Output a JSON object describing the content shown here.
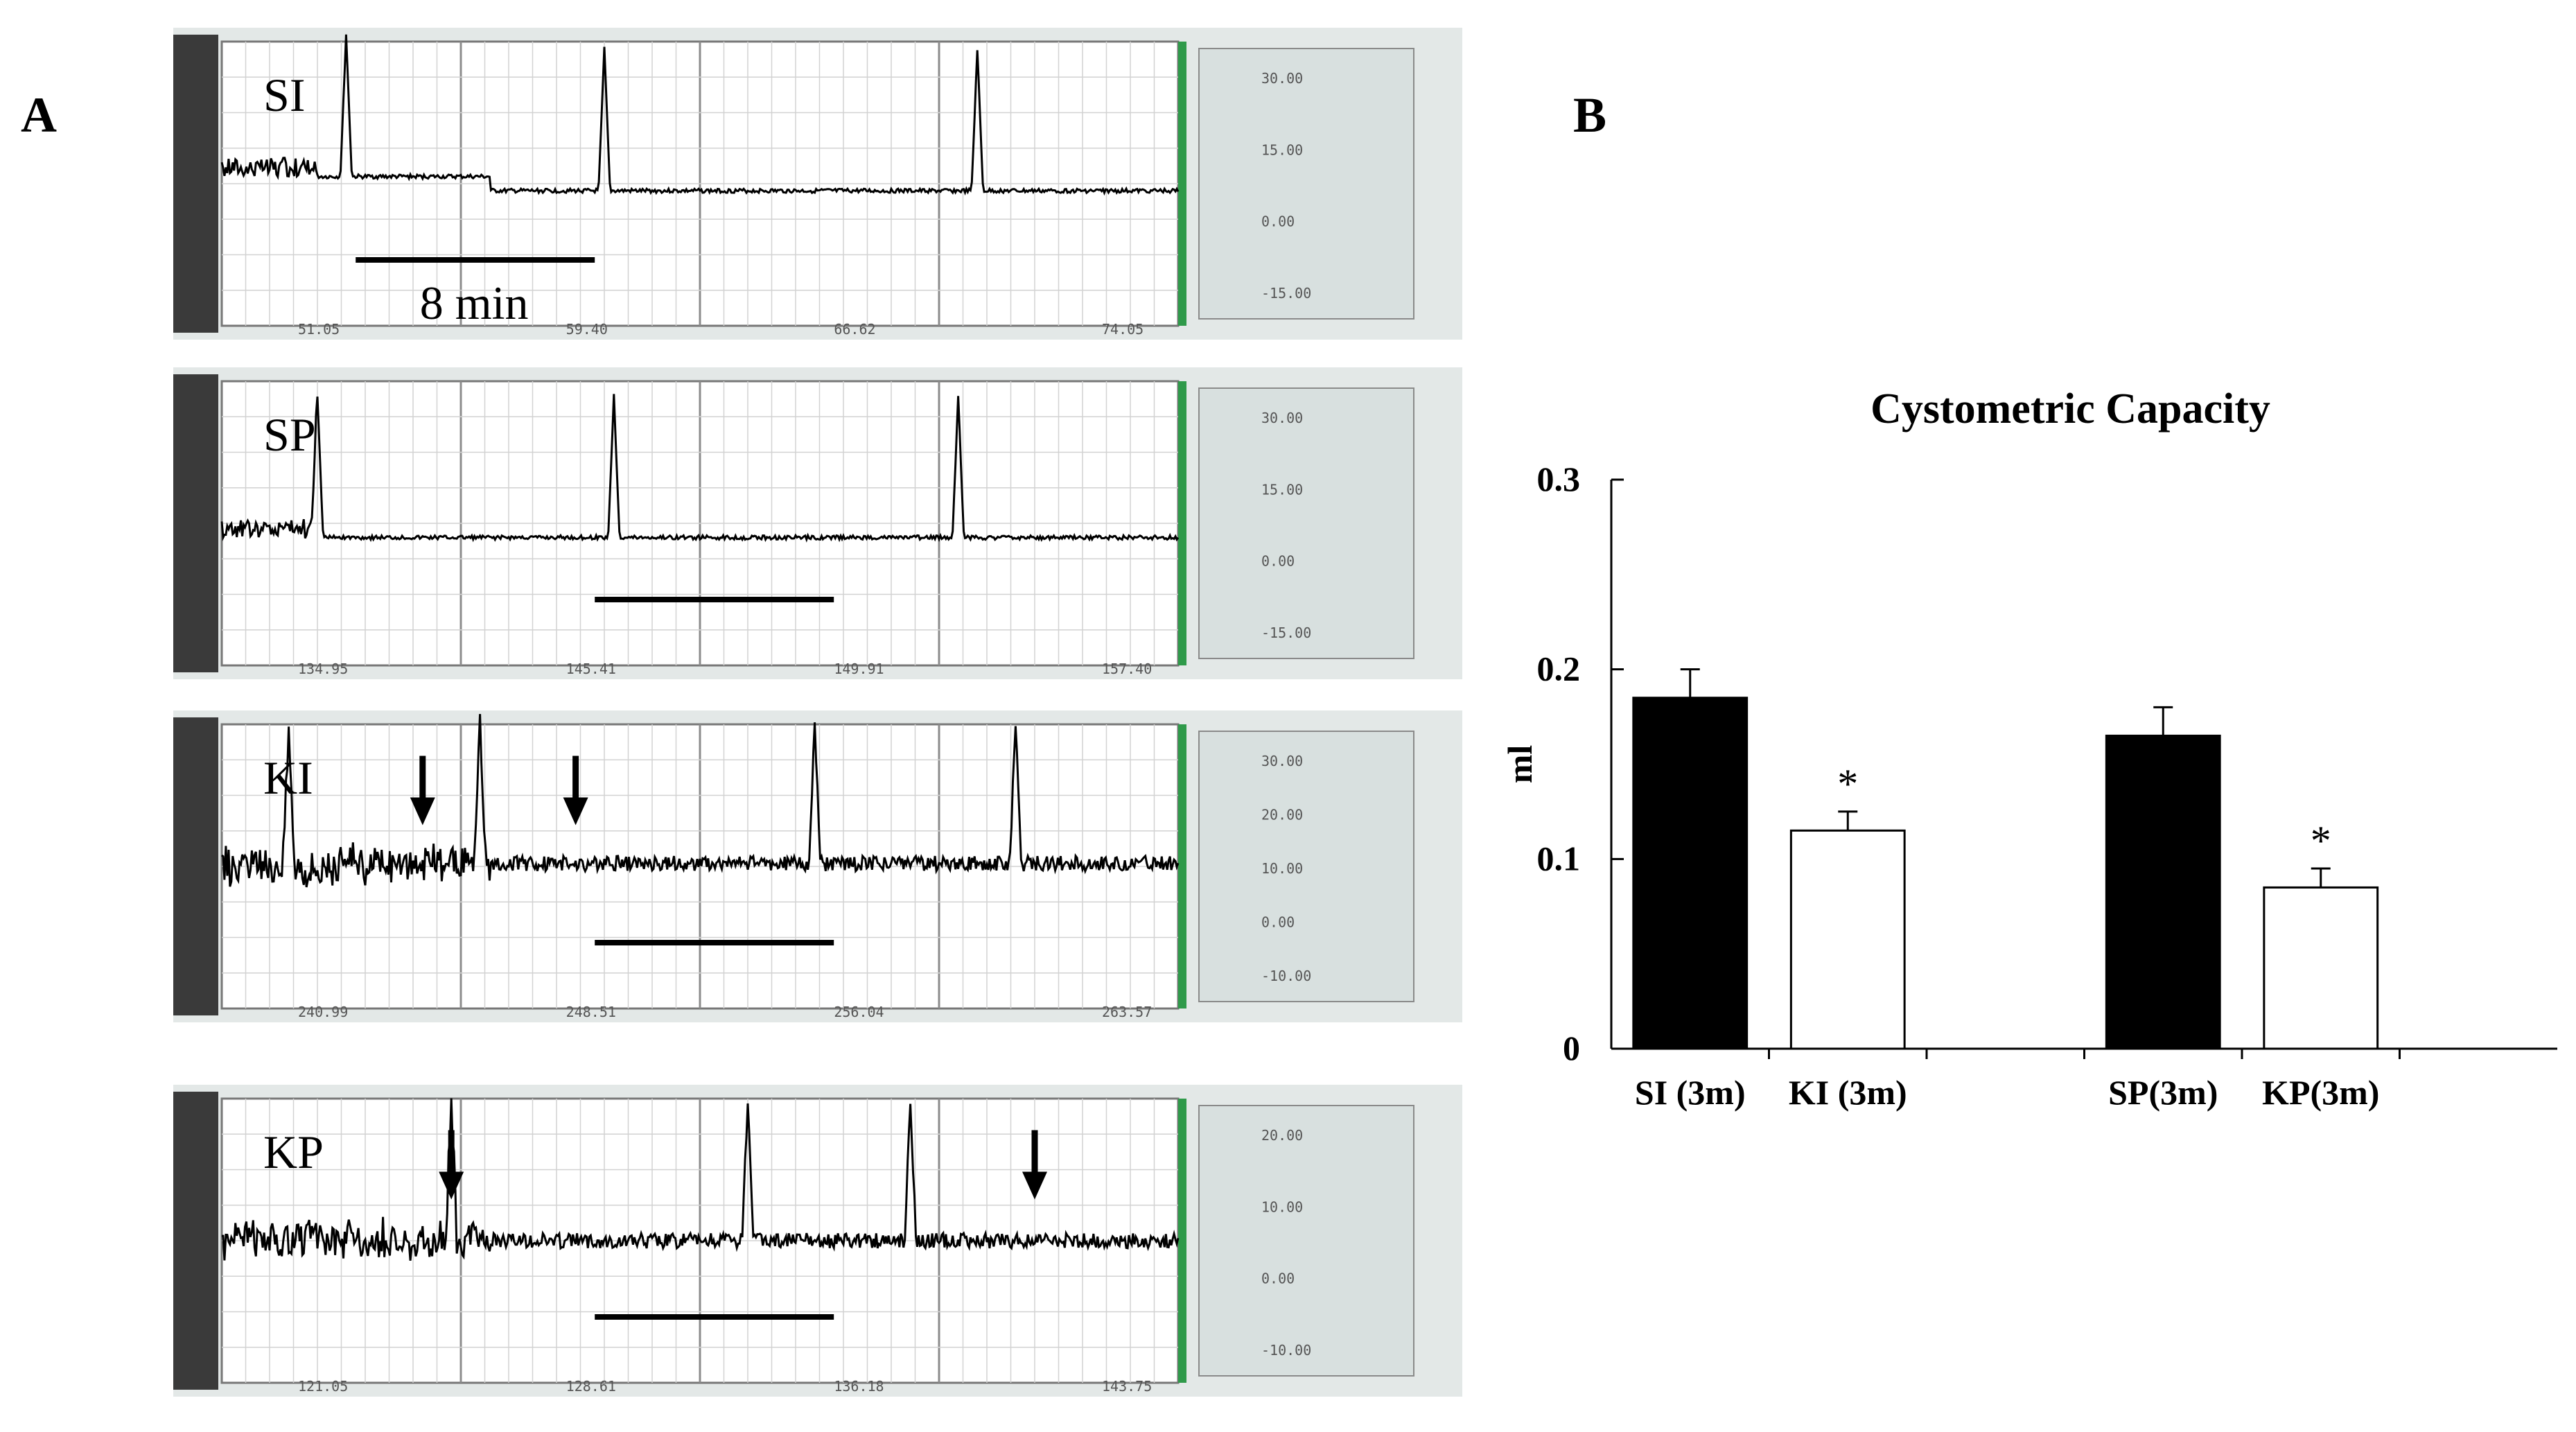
{
  "panels": {
    "a_label": "A",
    "b_label": "B"
  },
  "recordings": [
    {
      "id": "SI",
      "label": "SI",
      "scale_bar_label": "8 min",
      "time_ticks": [
        "51.05",
        "59.40",
        "66.62",
        "74.05"
      ],
      "y_ticks": [
        "30.00",
        "15.00",
        "0.00",
        "-15.00"
      ],
      "baseline": 0.25,
      "offsets": [
        0,
        0.05
      ],
      "peaks": [
        0.13,
        0.4,
        0.79
      ],
      "arrows": []
    },
    {
      "id": "SP",
      "label": "SP",
      "scale_bar_label": "",
      "time_ticks": [
        "134.95",
        "145.41",
        "149.91",
        "157.40"
      ],
      "y_ticks": [
        "30.00",
        "15.00",
        "0.00",
        "-15.00"
      ],
      "baseline": 0.0,
      "offsets": [
        0,
        0
      ],
      "peaks": [
        0.1,
        0.41,
        0.77
      ],
      "arrows": []
    },
    {
      "id": "KI",
      "label": "KI",
      "scale_bar_label": "",
      "time_ticks": [
        "240.99",
        "248.51",
        "256.04",
        "263.57"
      ],
      "y_ticks": [
        "30.00",
        "20.00",
        "10.00",
        "0.00",
        "-10.00"
      ],
      "baseline": 0.0,
      "offsets": [
        0,
        -0.06
      ],
      "peaks": [
        0.07,
        0.27,
        0.62,
        0.83
      ],
      "arrows": [
        0.21,
        0.37
      ]
    },
    {
      "id": "KP",
      "label": "KP",
      "scale_bar_label": "",
      "time_ticks": [
        "121.05",
        "128.61",
        "136.18",
        "143.75"
      ],
      "y_ticks": [
        "20.00",
        "10.00",
        "0.00",
        "-10.00"
      ],
      "baseline": 0.0,
      "offsets": [
        0,
        -0.05
      ],
      "peaks": [
        0.24,
        0.55,
        0.72
      ],
      "arrows": [
        0.24,
        0.85
      ]
    }
  ],
  "chart_data": {
    "type": "bar",
    "title": "Cystometric Capacity",
    "ylabel": "ml",
    "xlabel": "",
    "ylim": [
      0,
      0.3
    ],
    "yticks": [
      0,
      0.1,
      0.2,
      0.3
    ],
    "ytick_labels": [
      "0",
      "0.1",
      "0.2",
      "0.3"
    ],
    "categories": [
      "SI (3m)",
      "KI (3m)",
      "SP(3m)",
      "KP(3m)"
    ],
    "values": [
      0.185,
      0.115,
      0.165,
      0.085
    ],
    "errors": [
      0.015,
      0.01,
      0.015,
      0.01
    ],
    "fills": [
      "#000000",
      "#ffffff",
      "#000000",
      "#ffffff"
    ],
    "significance": [
      "",
      "*",
      "",
      "*"
    ]
  }
}
